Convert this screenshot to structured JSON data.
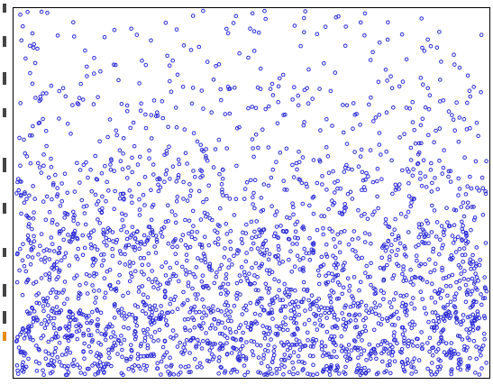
{
  "chart_data": {
    "type": "scatter",
    "title": "",
    "xlabel": "",
    "ylabel": "",
    "xlim": [
      0,
      1
    ],
    "ylim": [
      0,
      1
    ],
    "grid": false,
    "legend": "none",
    "marker": "open-circle",
    "density_note_visible": false,
    "series": [
      {
        "color": "#2b2bd6",
        "density_bands": [
          {
            "y_range": [
              0.0,
              0.2
            ],
            "points": 1100
          },
          {
            "y_range": [
              0.2,
              0.4
            ],
            "points": 760
          },
          {
            "y_range": [
              0.4,
              0.6
            ],
            "points": 420
          },
          {
            "y_range": [
              0.6,
              0.8
            ],
            "points": 210
          },
          {
            "y_range": [
              0.8,
              1.0
            ],
            "points": 110
          }
        ]
      }
    ]
  },
  "colors": {
    "marker": "#2b2bd6",
    "frame": "#000000",
    "background": "#ffffff",
    "edge_accent": "#e8890c"
  }
}
